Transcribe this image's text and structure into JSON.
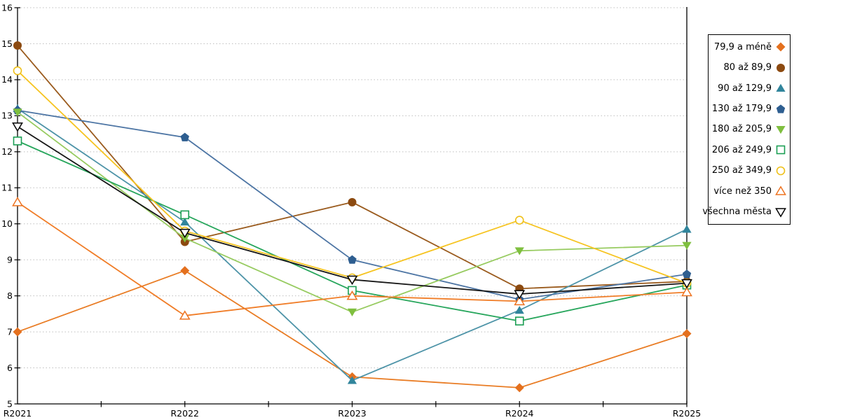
{
  "chart_data": {
    "type": "line",
    "title": "",
    "xlabel": "",
    "ylabel": "",
    "categories": [
      "R2021",
      "R2022",
      "R2023",
      "R2024",
      "R2025"
    ],
    "ylim": [
      5,
      16
    ],
    "yticks": [
      5,
      6,
      7,
      8,
      9,
      10,
      11,
      12,
      13,
      14,
      15,
      16
    ],
    "grid": "horizontal-dotted",
    "legend_position": "right",
    "axis_color": "#000000",
    "gridline_color": "#BFBFBF",
    "series": [
      {
        "name": "79,9 a méně",
        "marker": "diamond",
        "line_color": "#E97C24",
        "marker_color": "#E4701E",
        "values": [
          7.0,
          8.7,
          5.75,
          5.45,
          6.95
        ]
      },
      {
        "name": "80 až 89,9",
        "marker": "circle",
        "line_color": "#9A5B1E",
        "marker_color": "#8C4A10",
        "values": [
          14.95,
          9.5,
          10.6,
          8.2,
          8.4
        ]
      },
      {
        "name": "90 až 129,9",
        "marker": "triangle",
        "line_color": "#4E94A8",
        "marker_color": "#31859C",
        "values": [
          13.2,
          10.05,
          5.65,
          7.6,
          9.85
        ]
      },
      {
        "name": "130 až 179,9",
        "marker": "pentagon",
        "line_color": "#4D75A4",
        "marker_color": "#2E5E90",
        "values": [
          13.15,
          12.4,
          9.0,
          7.9,
          8.6
        ]
      },
      {
        "name": "180 až 205,9",
        "marker": "triangle-down",
        "line_color": "#97CB60",
        "marker_color": "#7FBF3F",
        "values": [
          13.1,
          9.6,
          7.55,
          9.25,
          9.4
        ]
      },
      {
        "name": "206 až 249,9",
        "marker": "square-open",
        "line_color": "#27A65C",
        "marker_color": "#1C9E54",
        "values": [
          12.3,
          10.25,
          8.15,
          7.3,
          8.3
        ]
      },
      {
        "name": "250 až 349,9",
        "marker": "circle-open",
        "line_color": "#F6C421",
        "marker_color": "#EFC018",
        "values": [
          14.25,
          9.8,
          8.5,
          10.1,
          8.35
        ]
      },
      {
        "name": "více než 350",
        "marker": "triangle-open",
        "line_color": "#F07D28",
        "marker_color": "#ED7321",
        "values": [
          10.6,
          7.45,
          8.0,
          7.85,
          8.1
        ]
      },
      {
        "name": "všechna města",
        "marker": "triangle-down-open",
        "line_color": "#161616",
        "marker_color": "#000000",
        "values": [
          12.7,
          9.75,
          8.45,
          8.05,
          8.35
        ]
      }
    ]
  }
}
